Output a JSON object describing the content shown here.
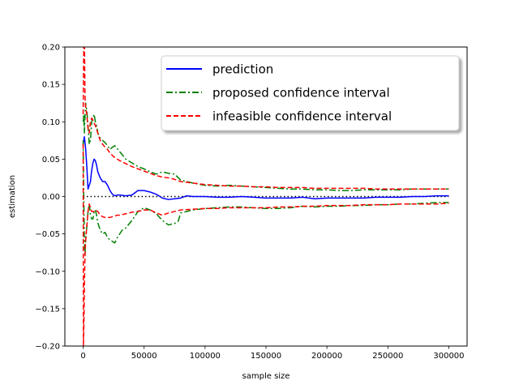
{
  "chart_data": {
    "type": "line",
    "xlabel": "sample size",
    "ylabel": "estimation",
    "xlim": [
      -15000,
      315000
    ],
    "ylim": [
      -0.2,
      0.2
    ],
    "xticks": [
      0,
      50000,
      100000,
      150000,
      200000,
      250000,
      300000
    ],
    "xtick_labels": [
      "0",
      "50000",
      "100000",
      "150000",
      "200000",
      "250000",
      "300000"
    ],
    "yticks": [
      -0.2,
      -0.15,
      -0.1,
      -0.05,
      0.0,
      0.05,
      0.1,
      0.15,
      0.2
    ],
    "ytick_labels": [
      "−0.20",
      "−0.15",
      "−0.10",
      "−0.05",
      "0.00",
      "0.05",
      "0.10",
      "0.15",
      "0.20"
    ],
    "grid": false,
    "legend_position": "top-right",
    "reference_line": {
      "y": 0,
      "color": "#000000",
      "style": "dotted"
    },
    "series": [
      {
        "name": "prediction",
        "color": "#0000ff",
        "style": "solid",
        "points": [
          [
            0,
            0.07
          ],
          [
            1000,
            0.08
          ],
          [
            2000,
            0.065
          ],
          [
            3000,
            0.04
          ],
          [
            4000,
            0.01
          ],
          [
            5000,
            0.015
          ],
          [
            6000,
            0.02
          ],
          [
            7000,
            0.035
          ],
          [
            8000,
            0.045
          ],
          [
            9000,
            0.05
          ],
          [
            10000,
            0.048
          ],
          [
            11000,
            0.042
          ],
          [
            12000,
            0.033
          ],
          [
            14000,
            0.025
          ],
          [
            16000,
            0.02
          ],
          [
            18000,
            0.02
          ],
          [
            20000,
            0.015
          ],
          [
            22000,
            0.008
          ],
          [
            24000,
            0.003
          ],
          [
            26000,
            0.001
          ],
          [
            28000,
            0.002
          ],
          [
            30000,
            0.002
          ],
          [
            35000,
            0.001
          ],
          [
            40000,
            0.002
          ],
          [
            45000,
            0.008
          ],
          [
            50000,
            0.008
          ],
          [
            55000,
            0.006
          ],
          [
            60000,
            0.003
          ],
          [
            65000,
            -0.002
          ],
          [
            70000,
            -0.004
          ],
          [
            75000,
            -0.003
          ],
          [
            80000,
            -0.002
          ],
          [
            85000,
            0.001
          ],
          [
            90000,
            0.0
          ],
          [
            100000,
            0.0
          ],
          [
            110000,
            -0.001
          ],
          [
            120000,
            -0.001
          ],
          [
            130000,
            0.0
          ],
          [
            140000,
            -0.001
          ],
          [
            150000,
            -0.002
          ],
          [
            160000,
            -0.002
          ],
          [
            170000,
            -0.002
          ],
          [
            180000,
            -0.001
          ],
          [
            190000,
            -0.003
          ],
          [
            200000,
            -0.002
          ],
          [
            210000,
            -0.002
          ],
          [
            220000,
            -0.002
          ],
          [
            230000,
            -0.002
          ],
          [
            240000,
            -0.001
          ],
          [
            250000,
            -0.001
          ],
          [
            260000,
            -0.001
          ],
          [
            270000,
            0.0
          ],
          [
            280000,
            0.0
          ],
          [
            290000,
            0.001
          ],
          [
            300000,
            0.001
          ]
        ]
      },
      {
        "name": "proposed confidence interval",
        "color": "#008000",
        "style": "dashdot",
        "upper": [
          [
            0,
            0.1
          ],
          [
            500,
            0.11
          ],
          [
            1000,
            0.085
          ],
          [
            1500,
            0.105
          ],
          [
            2000,
            0.125
          ],
          [
            3000,
            0.115
          ],
          [
            4000,
            0.095
          ],
          [
            5000,
            0.07
          ],
          [
            6000,
            0.075
          ],
          [
            7000,
            0.1
          ],
          [
            8000,
            0.105
          ],
          [
            9000,
            0.11
          ],
          [
            10000,
            0.1
          ],
          [
            11000,
            0.095
          ],
          [
            12000,
            0.085
          ],
          [
            14000,
            0.078
          ],
          [
            16000,
            0.075
          ],
          [
            18000,
            0.072
          ],
          [
            20000,
            0.068
          ],
          [
            22000,
            0.063
          ],
          [
            24000,
            0.066
          ],
          [
            26000,
            0.068
          ],
          [
            28000,
            0.064
          ],
          [
            30000,
            0.06
          ],
          [
            35000,
            0.05
          ],
          [
            40000,
            0.045
          ],
          [
            45000,
            0.04
          ],
          [
            50000,
            0.037
          ],
          [
            55000,
            0.033
          ],
          [
            60000,
            0.03
          ],
          [
            65000,
            0.033
          ],
          [
            70000,
            0.031
          ],
          [
            75000,
            0.03
          ],
          [
            80000,
            0.022
          ],
          [
            90000,
            0.018
          ],
          [
            100000,
            0.015
          ],
          [
            110000,
            0.014
          ],
          [
            120000,
            0.015
          ],
          [
            130000,
            0.014
          ],
          [
            140000,
            0.013
          ],
          [
            150000,
            0.012
          ],
          [
            160000,
            0.011
          ],
          [
            170000,
            0.01
          ],
          [
            180000,
            0.01
          ],
          [
            190000,
            0.009
          ],
          [
            200000,
            0.009
          ],
          [
            210000,
            0.008
          ],
          [
            220000,
            0.008
          ],
          [
            230000,
            0.009
          ],
          [
            240000,
            0.009
          ],
          [
            250000,
            0.009
          ],
          [
            260000,
            0.009
          ],
          [
            270000,
            0.01
          ],
          [
            280000,
            0.01
          ],
          [
            290000,
            0.01
          ],
          [
            300000,
            0.01
          ]
        ],
        "lower": [
          [
            0,
            0.075
          ],
          [
            500,
            0.0
          ],
          [
            1000,
            -0.06
          ],
          [
            1500,
            -0.08
          ],
          [
            2000,
            -0.06
          ],
          [
            3000,
            -0.04
          ],
          [
            4000,
            -0.02
          ],
          [
            5000,
            -0.01
          ],
          [
            6000,
            -0.025
          ],
          [
            7000,
            -0.03
          ],
          [
            8000,
            -0.03
          ],
          [
            9000,
            -0.02
          ],
          [
            10000,
            -0.018
          ],
          [
            11000,
            -0.025
          ],
          [
            12000,
            -0.035
          ],
          [
            14000,
            -0.045
          ],
          [
            16000,
            -0.05
          ],
          [
            18000,
            -0.048
          ],
          [
            20000,
            -0.055
          ],
          [
            22000,
            -0.058
          ],
          [
            24000,
            -0.06
          ],
          [
            26000,
            -0.062
          ],
          [
            28000,
            -0.055
          ],
          [
            30000,
            -0.05
          ],
          [
            32000,
            -0.045
          ],
          [
            35000,
            -0.042
          ],
          [
            40000,
            -0.032
          ],
          [
            45000,
            -0.02
          ],
          [
            50000,
            -0.015
          ],
          [
            55000,
            -0.018
          ],
          [
            60000,
            -0.023
          ],
          [
            65000,
            -0.032
          ],
          [
            70000,
            -0.038
          ],
          [
            75000,
            -0.036
          ],
          [
            78000,
            -0.033
          ],
          [
            80000,
            -0.022
          ],
          [
            90000,
            -0.018
          ],
          [
            100000,
            -0.016
          ],
          [
            110000,
            -0.015
          ],
          [
            120000,
            -0.014
          ],
          [
            130000,
            -0.014
          ],
          [
            140000,
            -0.015
          ],
          [
            150000,
            -0.016
          ],
          [
            160000,
            -0.016
          ],
          [
            170000,
            -0.015
          ],
          [
            180000,
            -0.013
          ],
          [
            190000,
            -0.014
          ],
          [
            200000,
            -0.013
          ],
          [
            210000,
            -0.013
          ],
          [
            220000,
            -0.012
          ],
          [
            230000,
            -0.012
          ],
          [
            240000,
            -0.011
          ],
          [
            250000,
            -0.011
          ],
          [
            260000,
            -0.01
          ],
          [
            270000,
            -0.01
          ],
          [
            280000,
            -0.009
          ],
          [
            290000,
            -0.008
          ],
          [
            300000,
            -0.008
          ]
        ]
      },
      {
        "name": "infeasible confidence interval",
        "color": "#ff0000",
        "style": "dashed",
        "upper": [
          [
            0,
            0.11
          ],
          [
            500,
            0.2
          ],
          [
            1000,
            0.22
          ],
          [
            1500,
            0.135
          ],
          [
            2000,
            0.12
          ],
          [
            3000,
            0.11
          ],
          [
            4000,
            0.09
          ],
          [
            5000,
            0.085
          ],
          [
            6000,
            0.1
          ],
          [
            7000,
            0.105
          ],
          [
            8000,
            0.102
          ],
          [
            9000,
            0.098
          ],
          [
            10000,
            0.095
          ],
          [
            12000,
            0.085
          ],
          [
            14000,
            0.075
          ],
          [
            16000,
            0.07
          ],
          [
            18000,
            0.066
          ],
          [
            20000,
            0.063
          ],
          [
            22000,
            0.058
          ],
          [
            24000,
            0.055
          ],
          [
            26000,
            0.052
          ],
          [
            28000,
            0.05
          ],
          [
            30000,
            0.048
          ],
          [
            35000,
            0.044
          ],
          [
            40000,
            0.04
          ],
          [
            45000,
            0.037
          ],
          [
            50000,
            0.034
          ],
          [
            55000,
            0.031
          ],
          [
            60000,
            0.028
          ],
          [
            65000,
            0.026
          ],
          [
            70000,
            0.025
          ],
          [
            75000,
            0.023
          ],
          [
            80000,
            0.02
          ],
          [
            90000,
            0.018
          ],
          [
            100000,
            0.016
          ],
          [
            110000,
            0.015
          ],
          [
            120000,
            0.014
          ],
          [
            130000,
            0.014
          ],
          [
            140000,
            0.013
          ],
          [
            150000,
            0.013
          ],
          [
            160000,
            0.012
          ],
          [
            170000,
            0.012
          ],
          [
            180000,
            0.012
          ],
          [
            190000,
            0.011
          ],
          [
            200000,
            0.011
          ],
          [
            210000,
            0.011
          ],
          [
            220000,
            0.011
          ],
          [
            230000,
            0.011
          ],
          [
            240000,
            0.01
          ],
          [
            250000,
            0.01
          ],
          [
            260000,
            0.01
          ],
          [
            270000,
            0.01
          ],
          [
            280000,
            0.01
          ],
          [
            290000,
            0.01
          ],
          [
            300000,
            0.01
          ]
        ],
        "lower": [
          [
            0,
            0.07
          ],
          [
            200,
            -0.2
          ],
          [
            500,
            -0.18
          ],
          [
            800,
            -0.15
          ],
          [
            1000,
            -0.12
          ],
          [
            1500,
            -0.08
          ],
          [
            2000,
            -0.06
          ],
          [
            3000,
            -0.04
          ],
          [
            4000,
            -0.02
          ],
          [
            5000,
            -0.01
          ],
          [
            6000,
            -0.015
          ],
          [
            7000,
            -0.02
          ],
          [
            8000,
            -0.02
          ],
          [
            9000,
            -0.02
          ],
          [
            10000,
            -0.018
          ],
          [
            12000,
            -0.02
          ],
          [
            14000,
            -0.025
          ],
          [
            16000,
            -0.027
          ],
          [
            18000,
            -0.028
          ],
          [
            20000,
            -0.028
          ],
          [
            22000,
            -0.028
          ],
          [
            24000,
            -0.027
          ],
          [
            26000,
            -0.026
          ],
          [
            28000,
            -0.025
          ],
          [
            30000,
            -0.025
          ],
          [
            35000,
            -0.023
          ],
          [
            40000,
            -0.021
          ],
          [
            45000,
            -0.02
          ],
          [
            50000,
            -0.018
          ],
          [
            55000,
            -0.018
          ],
          [
            60000,
            -0.022
          ],
          [
            65000,
            -0.025
          ],
          [
            70000,
            -0.022
          ],
          [
            75000,
            -0.02
          ],
          [
            80000,
            -0.018
          ],
          [
            90000,
            -0.017
          ],
          [
            100000,
            -0.016
          ],
          [
            110000,
            -0.016
          ],
          [
            120000,
            -0.015
          ],
          [
            130000,
            -0.015
          ],
          [
            140000,
            -0.015
          ],
          [
            150000,
            -0.015
          ],
          [
            160000,
            -0.014
          ],
          [
            170000,
            -0.014
          ],
          [
            180000,
            -0.013
          ],
          [
            190000,
            -0.013
          ],
          [
            200000,
            -0.012
          ],
          [
            210000,
            -0.012
          ],
          [
            220000,
            -0.012
          ],
          [
            230000,
            -0.011
          ],
          [
            240000,
            -0.011
          ],
          [
            250000,
            -0.011
          ],
          [
            260000,
            -0.01
          ],
          [
            270000,
            -0.01
          ],
          [
            280000,
            -0.01
          ],
          [
            290000,
            -0.01
          ],
          [
            300000,
            -0.009
          ]
        ]
      }
    ]
  }
}
